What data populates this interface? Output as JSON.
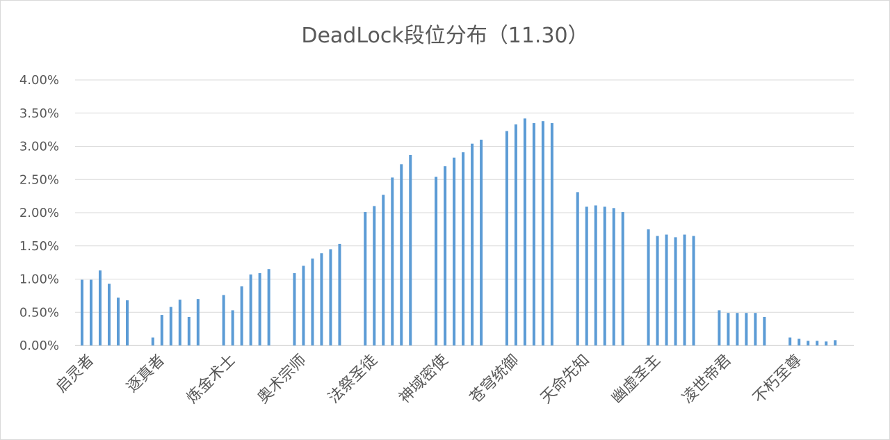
{
  "chart_data": {
    "type": "bar",
    "title": "DeadLock段位分布（11.30）",
    "xlabel": "",
    "ylabel": "",
    "ylim": [
      0,
      0.04
    ],
    "yticks": [
      "0.00%",
      "0.50%",
      "1.00%",
      "1.50%",
      "2.00%",
      "2.50%",
      "3.00%",
      "3.50%",
      "4.00%"
    ],
    "grid": true,
    "legend": "none",
    "bar_color": "#5b9bd5",
    "categories": [
      "启灵者",
      "逐真者",
      "炼金术士",
      "奥术宗师",
      "法祭圣徒",
      "神域密使",
      "苍穹统御",
      "天命先知",
      "幽虚圣主",
      "凌世帝君",
      "不朽至尊"
    ],
    "values": [
      [
        0.0099,
        0.0099,
        0.0113,
        0.0093,
        0.0072,
        0.0068
      ],
      [
        0.0012,
        0.0046,
        0.0058,
        0.0069,
        0.0043,
        0.007
      ],
      [
        0.0076,
        0.0053,
        0.0089,
        0.0107,
        0.0109,
        0.0115
      ],
      [
        0.0109,
        0.012,
        0.0131,
        0.0139,
        0.0145,
        0.0153
      ],
      [
        0.0201,
        0.021,
        0.0227,
        0.0253,
        0.0273,
        0.0287
      ],
      [
        0.0254,
        0.027,
        0.0283,
        0.0291,
        0.0304,
        0.031
      ],
      [
        0.0323,
        0.0333,
        0.0342,
        0.0335,
        0.0338,
        0.0335
      ],
      [
        0.0231,
        0.0209,
        0.0211,
        0.0209,
        0.0207,
        0.0201
      ],
      [
        0.0175,
        0.0165,
        0.0167,
        0.0163,
        0.0167,
        0.0165
      ],
      [
        0.0053,
        0.0049,
        0.0049,
        0.0049,
        0.0049,
        0.0043
      ],
      [
        0.0012,
        0.001,
        0.0007,
        0.0007,
        0.0006,
        0.0008
      ]
    ]
  }
}
